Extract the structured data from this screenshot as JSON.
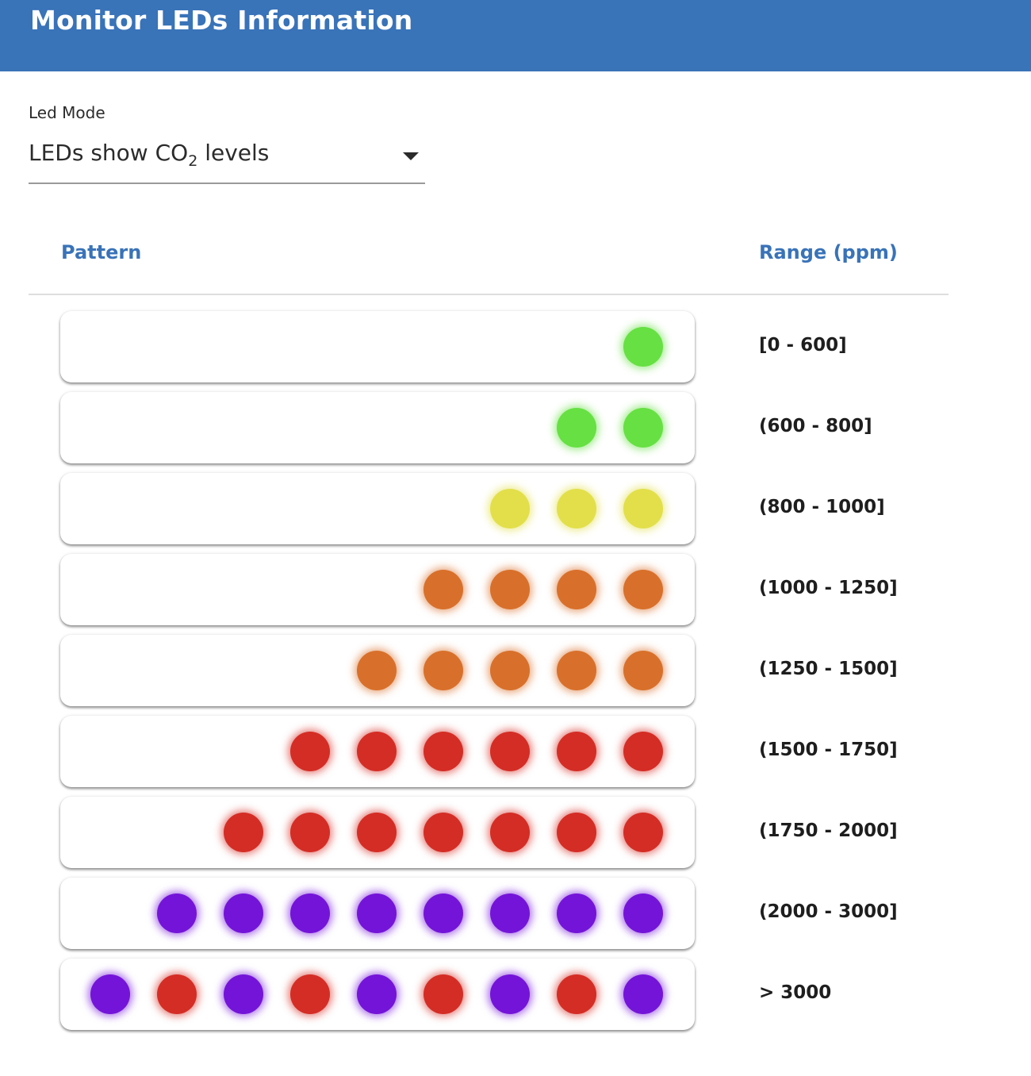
{
  "header": {
    "title": "Monitor LEDs Information"
  },
  "led_mode": {
    "label": "Led Mode",
    "selected_prefix": "LEDs show CO",
    "selected_subscript": "2",
    "selected_suffix": " levels"
  },
  "table": {
    "columns": {
      "pattern": "Pattern",
      "range": "Range (ppm)"
    },
    "colors": {
      "green": "#66e043",
      "yellow": "#e2df4a",
      "orange": "#d8702b",
      "red": "#d42d25",
      "purple": "#7414d8"
    },
    "rows": [
      {
        "range": "[0 - 600]",
        "leds": [
          "green"
        ]
      },
      {
        "range": "(600 - 800]",
        "leds": [
          "green",
          "green"
        ]
      },
      {
        "range": "(800 - 1000]",
        "leds": [
          "yellow",
          "yellow",
          "yellow"
        ]
      },
      {
        "range": "(1000 - 1250]",
        "leds": [
          "orange",
          "orange",
          "orange",
          "orange"
        ]
      },
      {
        "range": "(1250 - 1500]",
        "leds": [
          "orange",
          "orange",
          "orange",
          "orange",
          "orange"
        ]
      },
      {
        "range": "(1500 - 1750]",
        "leds": [
          "red",
          "red",
          "red",
          "red",
          "red",
          "red"
        ]
      },
      {
        "range": "(1750 - 2000]",
        "leds": [
          "red",
          "red",
          "red",
          "red",
          "red",
          "red",
          "red"
        ]
      },
      {
        "range": "(2000 - 3000]",
        "leds": [
          "purple",
          "purple",
          "purple",
          "purple",
          "purple",
          "purple",
          "purple",
          "purple"
        ]
      },
      {
        "range": "> 3000",
        "leds": [
          "purple",
          "red",
          "purple",
          "red",
          "purple",
          "red",
          "purple",
          "red",
          "purple"
        ]
      }
    ]
  }
}
